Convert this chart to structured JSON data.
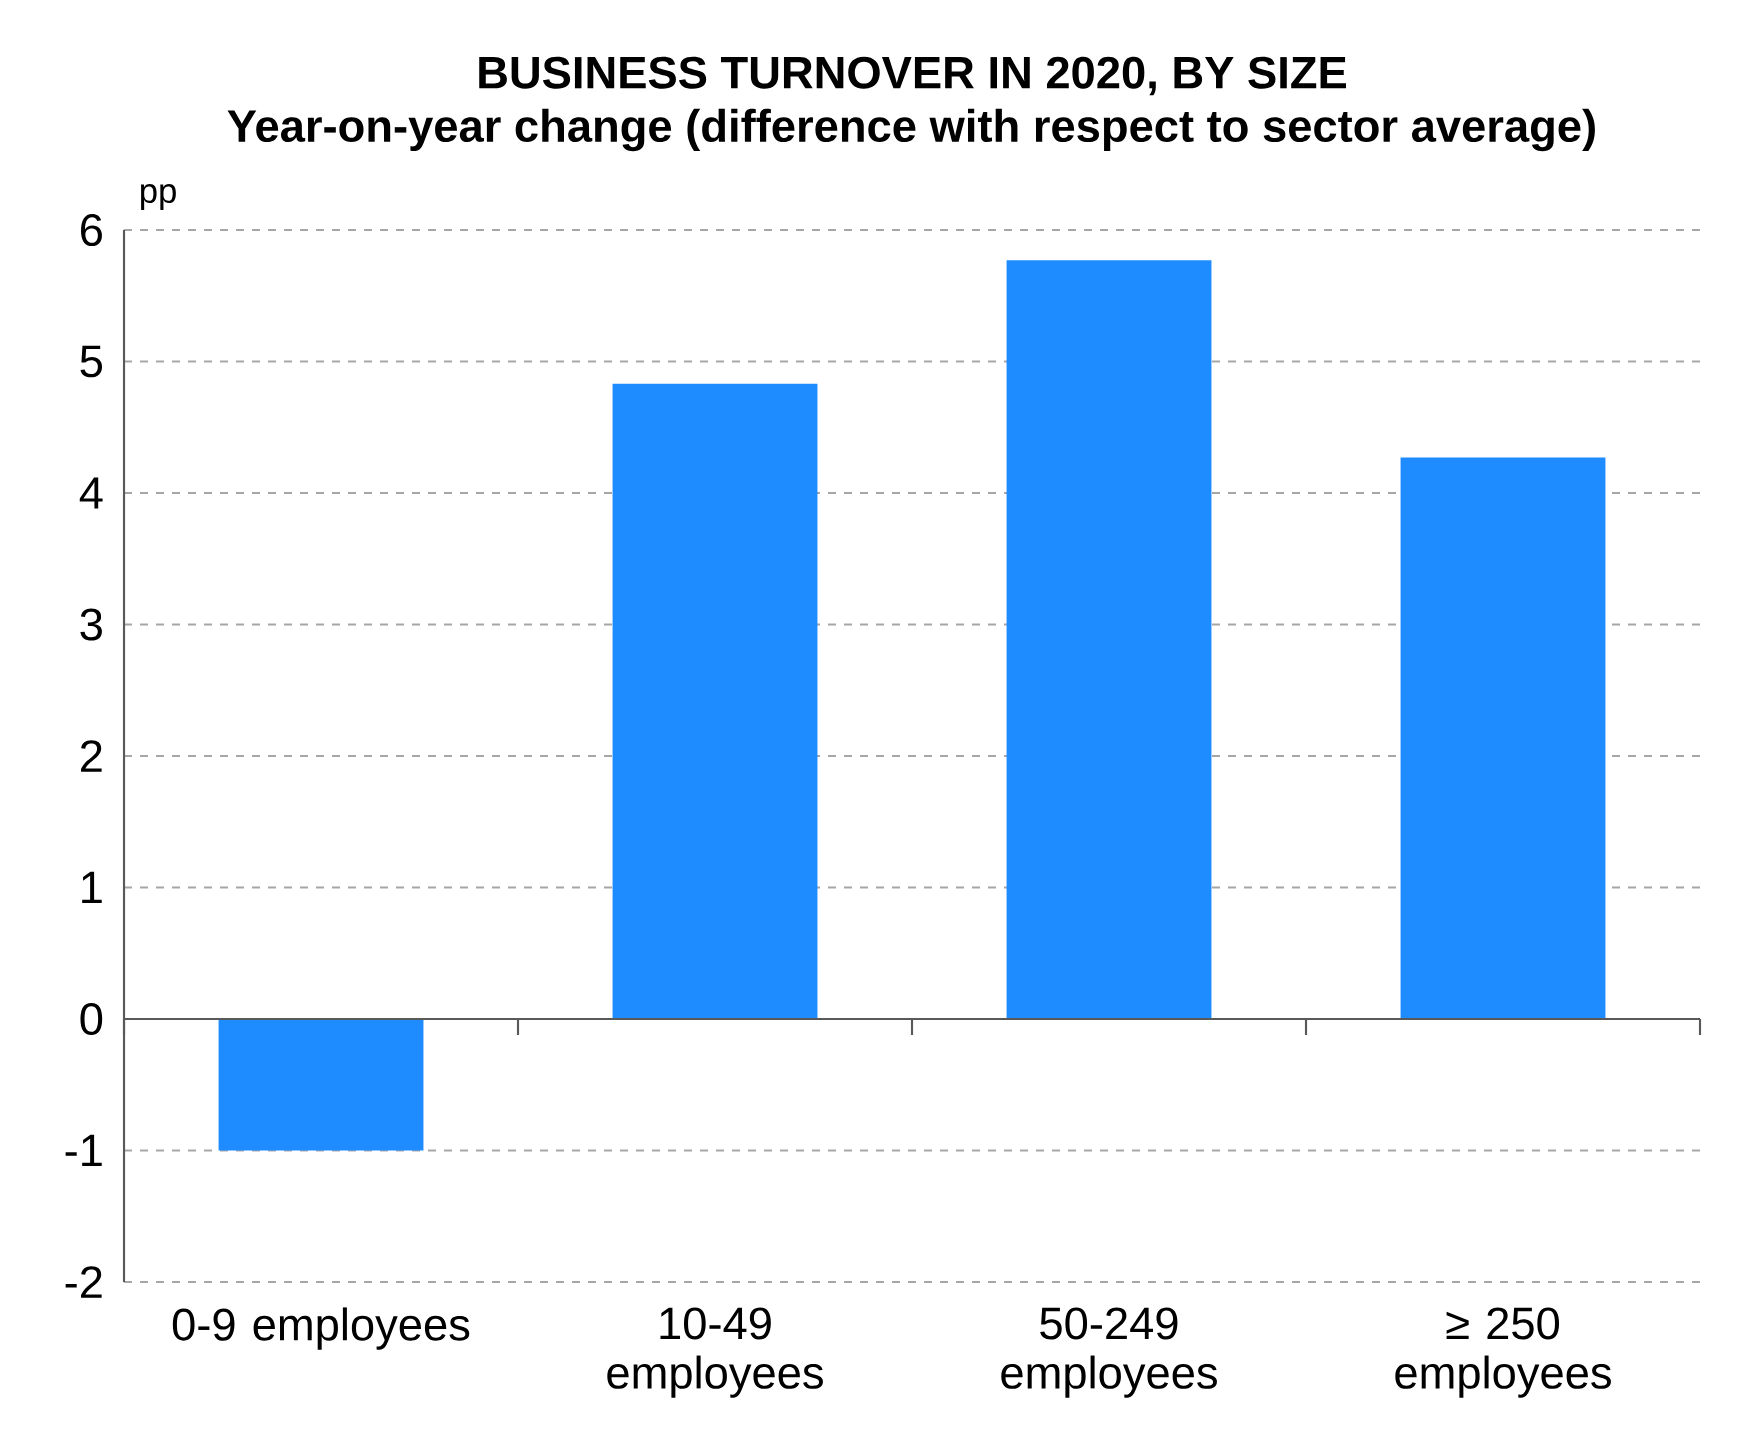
{
  "chart_data": {
    "type": "bar",
    "title": "BUSINESS TURNOVER IN 2020, BY SIZE",
    "subtitle": "Year-on-year change (difference with respect to sector average)",
    "ylabel": "pp",
    "categories": [
      "0-9 employees",
      "10-49 employees",
      "50-249 employees",
      "≥ 250 employees"
    ],
    "values": [
      -1.0,
      4.83,
      5.77,
      4.27
    ],
    "color": "#1e8cff",
    "ylim": [
      -2,
      6
    ],
    "yticks": [
      -2,
      -1,
      0,
      1,
      2,
      3,
      4,
      5,
      6
    ],
    "grid": "y"
  }
}
